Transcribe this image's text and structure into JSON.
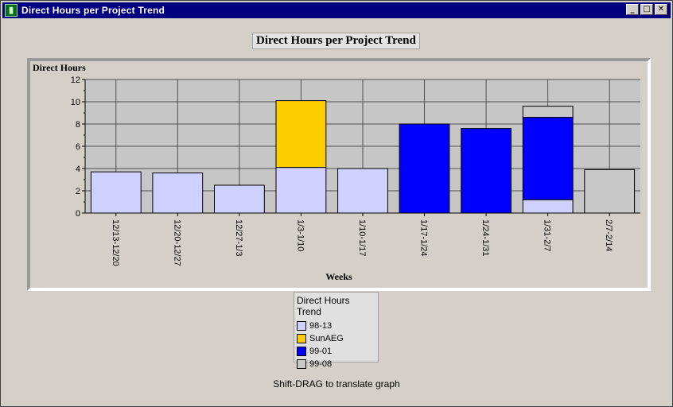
{
  "window": {
    "title": "Direct Hours per Project Trend"
  },
  "chart_data": {
    "type": "bar",
    "stacked": true,
    "title": "Direct Hours per Project Trend",
    "xlabel": "Weeks",
    "ylabel": "Direct Hours",
    "ylim": [
      0,
      12
    ],
    "yticks": [
      0,
      2,
      4,
      6,
      8,
      10,
      12
    ],
    "grid": true,
    "legend_position": "bottom-center",
    "legend_title": "Direct Hours Trend",
    "categories": [
      "12/13-12/20",
      "12/20-12/27",
      "12/27-1/3",
      "1/3-1/10",
      "1/10-1/17",
      "1/17-1/24",
      "1/24-1/31",
      "1/31-2/7",
      "2/7-2/14"
    ],
    "series": [
      {
        "name": "98-13",
        "color": "#d0d0ff",
        "values": [
          3.7,
          3.6,
          2.5,
          4.1,
          4.0,
          0,
          0,
          1.2,
          0
        ]
      },
      {
        "name": "SunAEG",
        "color": "#ffcc00",
        "values": [
          0,
          0,
          0,
          6.0,
          0,
          0,
          0,
          0,
          0
        ]
      },
      {
        "name": "99-01",
        "color": "#0000ff",
        "values": [
          0,
          0,
          0,
          0,
          0,
          8.0,
          7.6,
          7.4,
          0
        ]
      },
      {
        "name": "99-08",
        "color": "#c8c8c8",
        "values": [
          0,
          0,
          0,
          0,
          0,
          0,
          0,
          1.0,
          3.9
        ]
      }
    ]
  },
  "footer": {
    "hint": "Shift-DRAG to translate graph"
  }
}
